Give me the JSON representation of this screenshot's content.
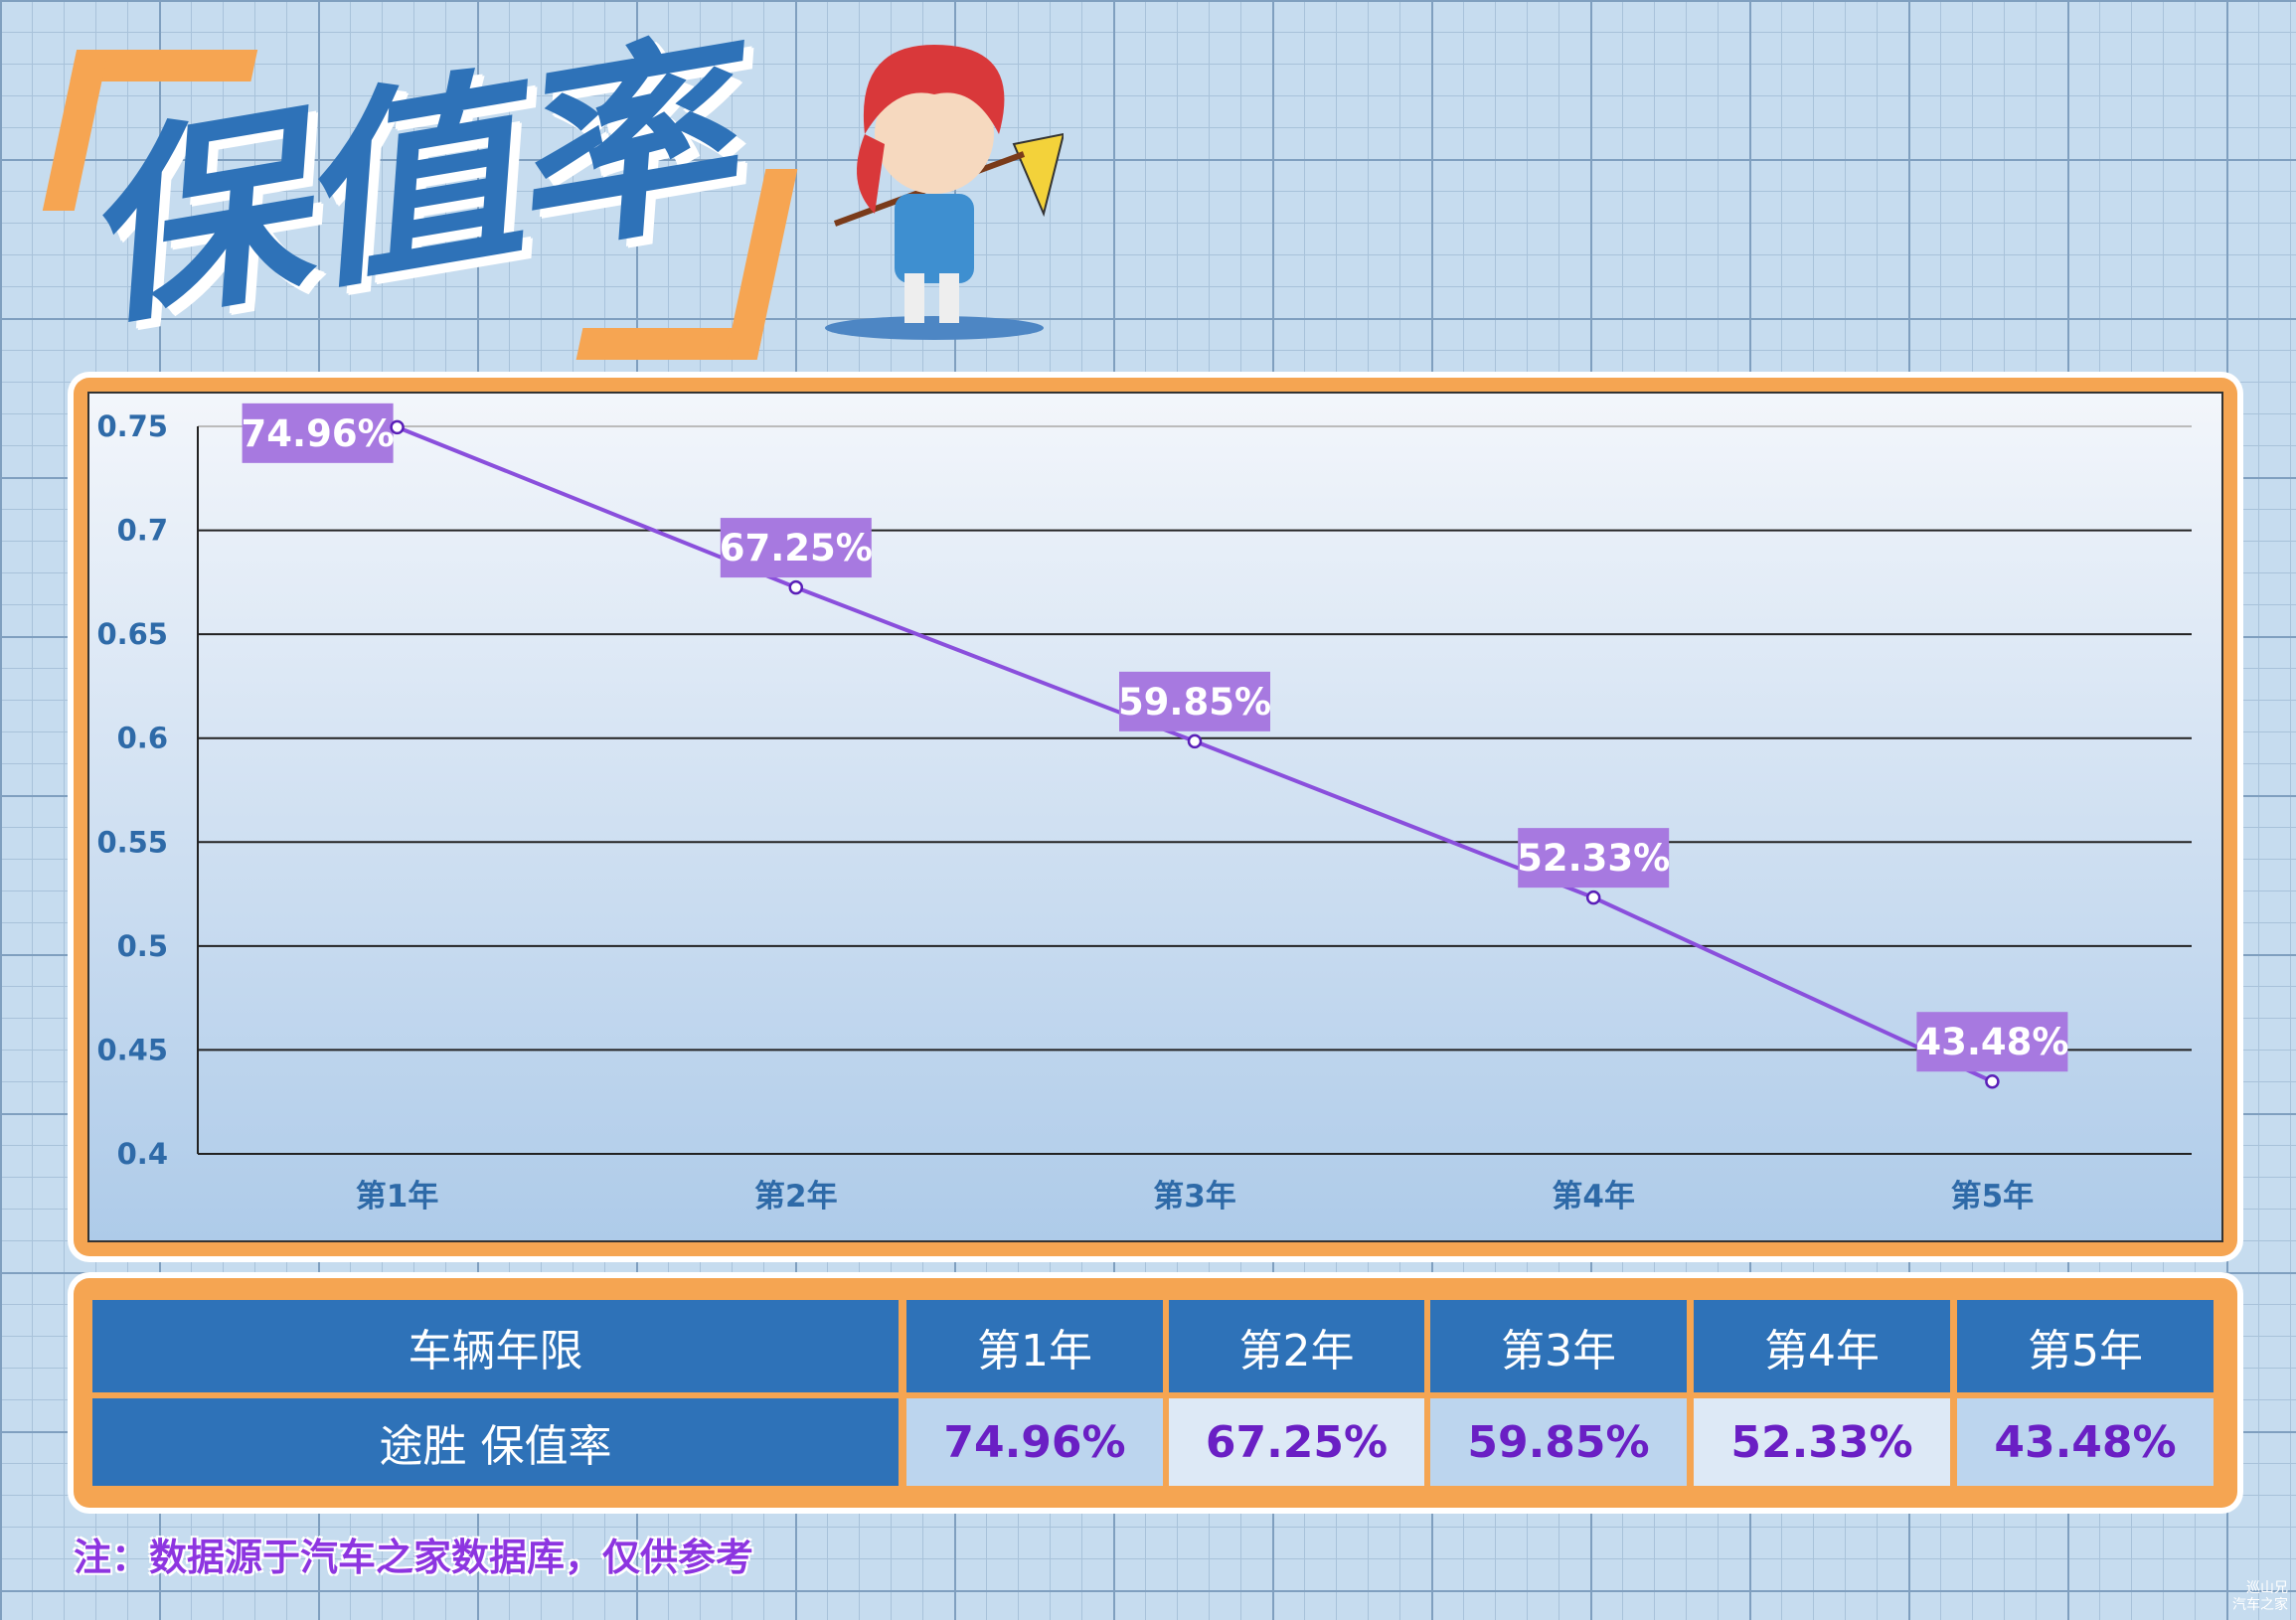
{
  "title": "保值率",
  "chart_data": {
    "type": "line",
    "categories": [
      "第1年",
      "第2年",
      "第3年",
      "第4年",
      "第5年"
    ],
    "series": [
      {
        "name": "途胜 保值率",
        "values": [
          0.7496,
          0.6725,
          0.5985,
          0.5233,
          0.4348
        ]
      }
    ],
    "data_labels": [
      "74.96%",
      "67.25%",
      "59.85%",
      "52.33%",
      "43.48%"
    ],
    "yticks": [
      "0.75",
      "0.7",
      "0.65",
      "0.6",
      "0.55",
      "0.5",
      "0.45",
      "0.4"
    ],
    "ylim": [
      0.4,
      0.75
    ],
    "grid": true,
    "line_color": "#8a4fdc",
    "label_bg": "#a779e0"
  },
  "table": {
    "header": [
      "车辆年限",
      "第1年",
      "第2年",
      "第3年",
      "第4年",
      "第5年"
    ],
    "row": [
      "途胜 保值率",
      "74.96%",
      "67.25%",
      "59.85%",
      "52.33%",
      "43.48%"
    ]
  },
  "note": "注：数据源于汽车之家数据库，仅供参考",
  "watermark": [
    "巡山兄",
    "汽车之家"
  ]
}
